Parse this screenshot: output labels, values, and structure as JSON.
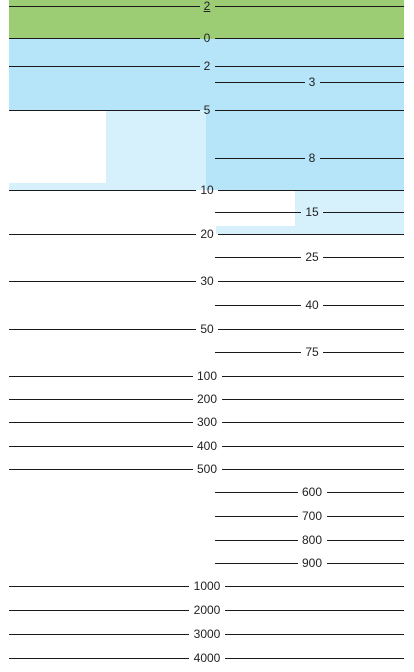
{
  "colors": {
    "land": "#9ccc74",
    "water": "#b6e4f8",
    "water_light": "#d6f1fb",
    "line": "#1a1a1a",
    "text": "#222222"
  },
  "ticks_left": [
    {
      "label": "2",
      "underline": true
    },
    {
      "label": "0"
    },
    {
      "label": "2"
    },
    {
      "label": "5"
    },
    {
      "label": "10"
    },
    {
      "label": "20"
    },
    {
      "label": "30"
    },
    {
      "label": "50"
    },
    {
      "label": "100"
    },
    {
      "label": "200"
    },
    {
      "label": "300"
    },
    {
      "label": "400"
    },
    {
      "label": "500"
    },
    {
      "label": "1000"
    },
    {
      "label": "2000"
    },
    {
      "label": "3000"
    },
    {
      "label": "4000"
    }
  ],
  "ticks_right": [
    {
      "label": "3"
    },
    {
      "label": "8"
    },
    {
      "label": "15"
    },
    {
      "label": "25"
    },
    {
      "label": "40"
    },
    {
      "label": "75"
    },
    {
      "label": "600"
    },
    {
      "label": "700"
    },
    {
      "label": "800"
    },
    {
      "label": "900"
    }
  ]
}
